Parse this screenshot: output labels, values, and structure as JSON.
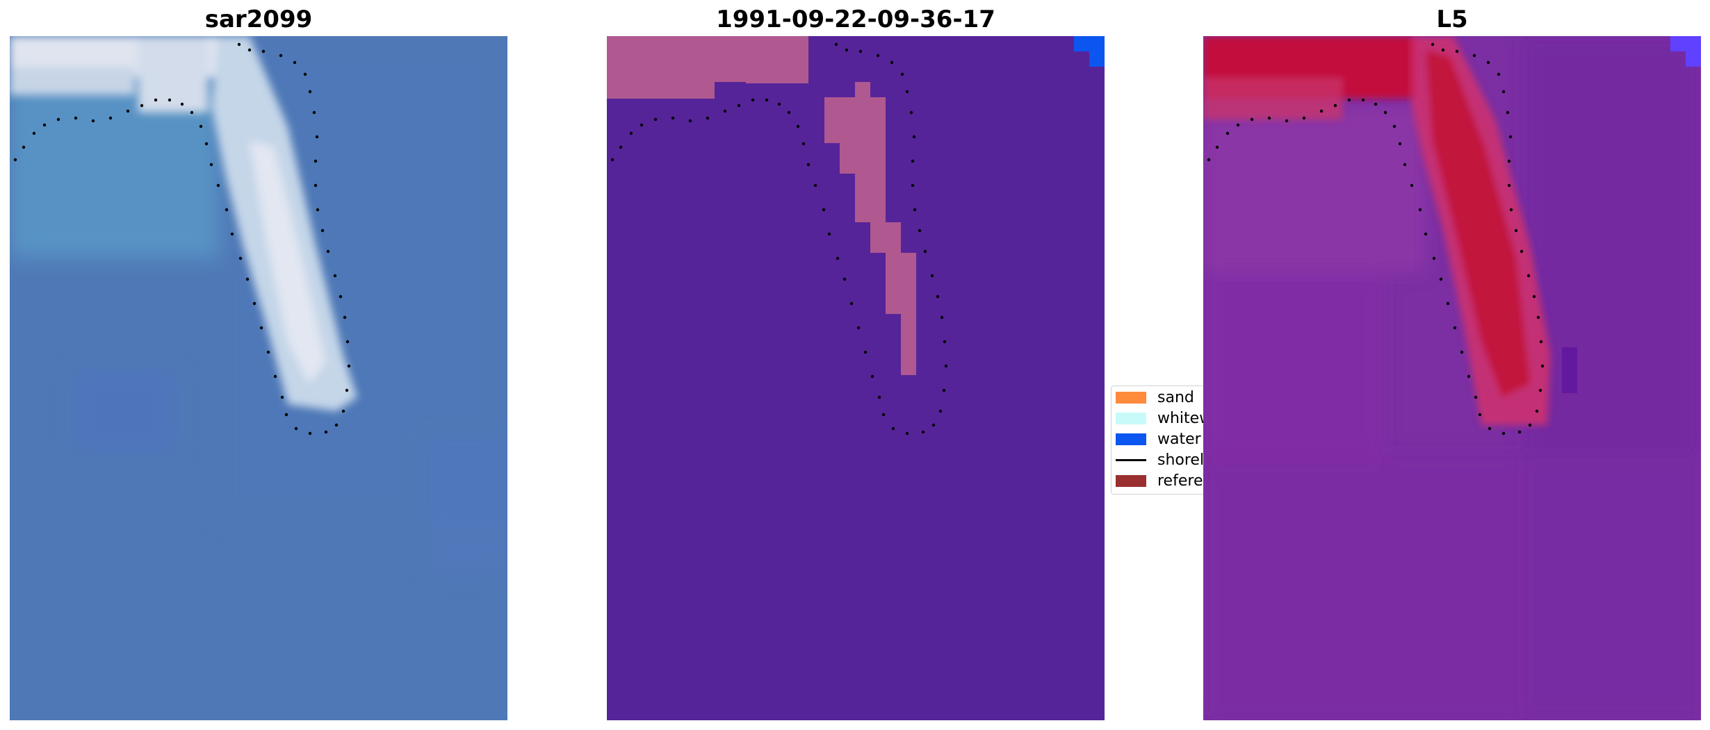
{
  "panels": [
    {
      "title": "sar2099",
      "view": "true-color composite"
    },
    {
      "title": "1991-09-22-09-36-17",
      "view": "classified image"
    },
    {
      "title": "L5",
      "view": "false-color composite"
    }
  ],
  "legend": {
    "placement": "center",
    "items": [
      {
        "label": "sand",
        "type": "patch",
        "color": "#fe8a3c"
      },
      {
        "label": "whitewater",
        "type": "patch",
        "color": "#c8fafa"
      },
      {
        "label": "water",
        "type": "patch",
        "color": "#0b56f0"
      },
      {
        "label": "shoreline",
        "type": "line",
        "color": "#000000"
      },
      {
        "label": "reference shoreline",
        "type": "patch",
        "color": "#9b2f2f"
      }
    ]
  },
  "colors": {
    "water_rgb": "#4d7ab8",
    "water_class": "#562499",
    "sand_overlay": "#b05990",
    "water_blue_corner": "#0b56f0",
    "false_color_bg": "#7a2ca0",
    "false_color_sand": "#c0143a"
  }
}
